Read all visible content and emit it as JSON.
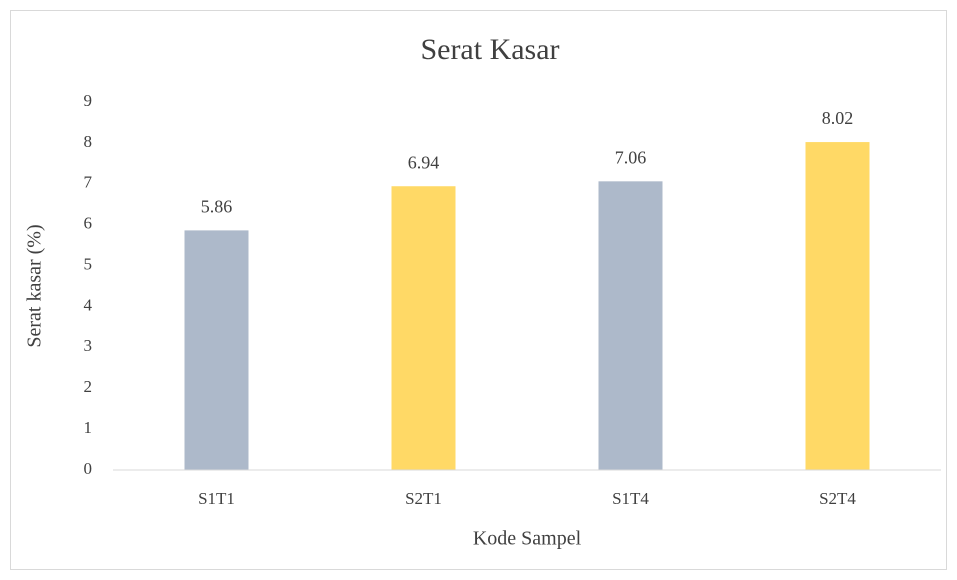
{
  "chart_data": {
    "type": "bar",
    "title": "Serat Kasar",
    "x_label": "Kode Sampel",
    "y_label": "Serat kasar (%)",
    "categories": [
      "S1T1",
      "S2T1",
      "S1T4",
      "S2T4"
    ],
    "values": [
      5.86,
      6.94,
      7.06,
      8.02
    ],
    "colors": [
      "#adb9ca",
      "#ffd966",
      "#adb9ca",
      "#ffd966"
    ],
    "ylim": [
      0,
      9
    ],
    "yticks": [
      0,
      1,
      2,
      3,
      4,
      5,
      6,
      7,
      8,
      9
    ],
    "grid": false
  }
}
